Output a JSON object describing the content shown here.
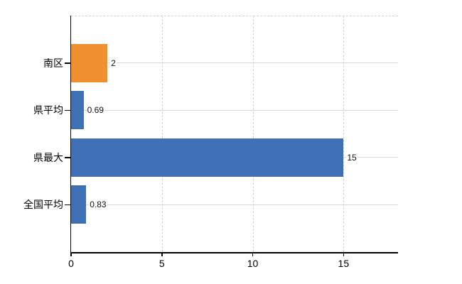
{
  "chart_data": {
    "type": "bar",
    "orientation": "horizontal",
    "title": "",
    "categories": [
      "南区",
      "県平均",
      "県最大",
      "全国平均"
    ],
    "values": [
      2,
      0.69,
      15,
      0.83
    ],
    "value_labels": [
      "2",
      "0.69",
      "15",
      "0.83"
    ],
    "bar_colors": [
      "#EF8F2F",
      "#3F70B5",
      "#3F70B5",
      "#3F70B5"
    ],
    "xlabel": "",
    "ylabel": "",
    "xlim": [
      0,
      18
    ],
    "x_ticks": [
      0,
      5,
      10,
      15
    ],
    "grid": true,
    "legend": false
  },
  "colors": {
    "bar_orange": "#EF8F2F",
    "bar_blue": "#3F70B5",
    "gridline_solid": "#D6DBD3",
    "gridline_dashed": "#D2D2D2",
    "axis": "#000000",
    "background": "#FFFFFF",
    "label_text": "#000000"
  }
}
